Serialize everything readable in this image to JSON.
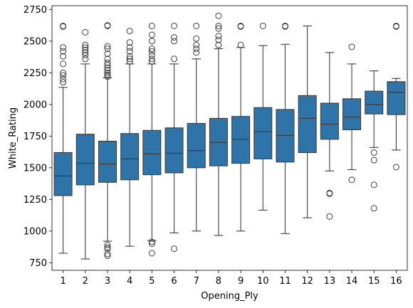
{
  "chart_data": {
    "type": "box",
    "title": "",
    "xlabel": "Opening_Ply",
    "ylabel": "White_Rating",
    "ylim": [
      690,
      2780
    ],
    "yticks": [
      750,
      1000,
      1250,
      1500,
      1750,
      2000,
      2250,
      2500,
      2750
    ],
    "grid": false,
    "box_color": "#2f74a8",
    "line_color": "#3d3d3d",
    "categories": [
      "1",
      "2",
      "3",
      "4",
      "5",
      "6",
      "7",
      "8",
      "9",
      "10",
      "11",
      "12",
      "13",
      "14",
      "15",
      "16"
    ],
    "boxes": [
      {
        "whislo": 825,
        "q1": 1280,
        "med": 1435,
        "q3": 1620,
        "whishi": 2135,
        "fliers": [
          2175,
          2200,
          2230,
          2250,
          2320,
          2380,
          2420,
          2450,
          2615,
          2620
        ]
      },
      {
        "whislo": 780,
        "q1": 1365,
        "med": 1535,
        "q3": 1765,
        "whishi": 2320,
        "fliers": [
          2360,
          2390,
          2410,
          2430,
          2450,
          2470,
          2570
        ]
      },
      {
        "whislo": 920,
        "q1": 1385,
        "med": 1530,
        "q3": 1710,
        "whishi": 2210,
        "fliers": [
          805,
          820,
          860,
          870,
          890,
          2220,
          2235,
          2250,
          2270,
          2290,
          2310,
          2330,
          2360,
          2400,
          2440,
          2460,
          2620,
          2625
        ]
      },
      {
        "whislo": 880,
        "q1": 1405,
        "med": 1570,
        "q3": 1770,
        "whishi": 2320,
        "fliers": [
          2340,
          2360,
          2380,
          2420,
          2450,
          2490,
          2580
        ]
      },
      {
        "whislo": 925,
        "q1": 1445,
        "med": 1610,
        "q3": 1795,
        "whishi": 2320,
        "fliers": [
          825,
          900,
          915,
          2340,
          2360,
          2390,
          2420,
          2440,
          2500,
          2550,
          2620
        ]
      },
      {
        "whislo": 985,
        "q1": 1460,
        "med": 1615,
        "q3": 1815,
        "whishi": 2320,
        "fliers": [
          860,
          2360,
          2500,
          2530,
          2620
        ]
      },
      {
        "whislo": 1000,
        "q1": 1500,
        "med": 1635,
        "q3": 1850,
        "whishi": 2360,
        "fliers": [
          2410,
          2440,
          2470,
          2520,
          2620
        ]
      },
      {
        "whislo": 965,
        "q1": 1515,
        "med": 1700,
        "q3": 1890,
        "whishi": 2440,
        "fliers": [
          2470,
          2510,
          2540,
          2600,
          2620,
          2700
        ]
      },
      {
        "whislo": 1000,
        "q1": 1535,
        "med": 1725,
        "q3": 1905,
        "whishi": 2450,
        "fliers": [
          2470,
          2615,
          2620
        ]
      },
      {
        "whislo": 1165,
        "q1": 1570,
        "med": 1785,
        "q3": 1975,
        "whishi": 2465,
        "fliers": [
          2620
        ]
      },
      {
        "whislo": 980,
        "q1": 1545,
        "med": 1755,
        "q3": 1960,
        "whishi": 2475,
        "fliers": [
          2615,
          2620
        ]
      },
      {
        "whislo": 1105,
        "q1": 1620,
        "med": 1890,
        "q3": 2070,
        "whishi": 2620,
        "fliers": []
      },
      {
        "whislo": 1475,
        "q1": 1725,
        "med": 1845,
        "q3": 2010,
        "whishi": 2410,
        "fliers": [
          1115,
          1295,
          1300
        ]
      },
      {
        "whislo": 1485,
        "q1": 1800,
        "med": 1900,
        "q3": 2045,
        "whishi": 2320,
        "fliers": [
          1405,
          2455
        ]
      },
      {
        "whislo": 1660,
        "q1": 1925,
        "med": 2000,
        "q3": 2105,
        "whishi": 2265,
        "fliers": [
          1180,
          1365,
          1560,
          1620
        ]
      },
      {
        "whislo": 1640,
        "q1": 1920,
        "med": 2095,
        "q3": 2180,
        "whishi": 2205,
        "fliers": [
          1505,
          2615,
          2620
        ]
      }
    ]
  }
}
